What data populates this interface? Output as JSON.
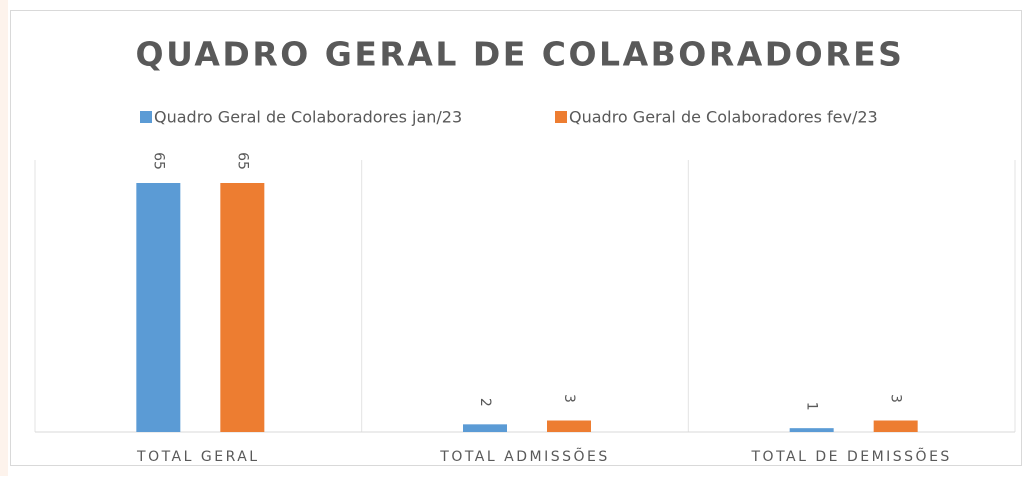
{
  "chart_data": {
    "type": "bar",
    "title": "QUADRO GERAL DE COLABORADORES",
    "categories": [
      "TOTAL GERAL",
      "TOTAL ADMISSÕES",
      "TOTAL DE DEMISSÕES"
    ],
    "series": [
      {
        "name": "Quadro Geral de Colaboradores jan/23",
        "color": "#5b9bd5",
        "values": [
          65,
          2,
          1
        ]
      },
      {
        "name": "Quadro Geral de Colaboradores fev/23",
        "color": "#ed7d31",
        "values": [
          65,
          3,
          3
        ]
      }
    ],
    "legend": "top"
  }
}
